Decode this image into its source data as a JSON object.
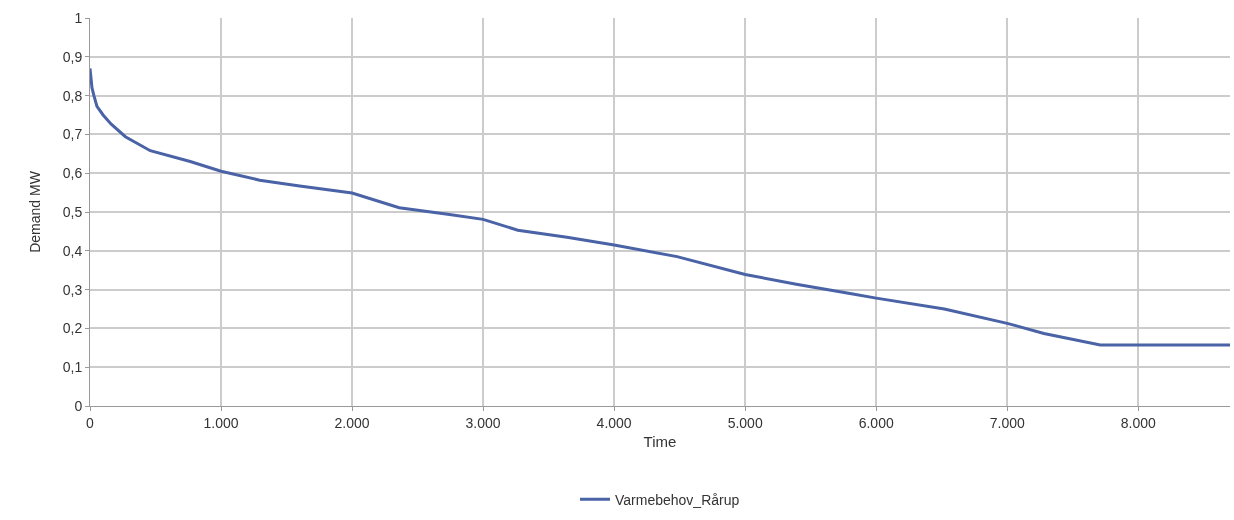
{
  "chart_data": {
    "type": "line",
    "xlabel": "Time",
    "ylabel": "Demand MW",
    "x": [
      0,
      15,
      30,
      53,
      100,
      160,
      270,
      460,
      765,
      1000,
      1295,
      1600,
      2000,
      2360,
      2730,
      3000,
      3265,
      3640,
      4000,
      4480,
      5000,
      5390,
      5800,
      6000,
      6520,
      7000,
      7280,
      7710,
      8700
    ],
    "series": [
      {
        "name": "Varmebehov_Rårup",
        "color": "#4a62a6",
        "values": [
          0.87,
          0.82,
          0.8,
          0.772,
          0.75,
          0.727,
          0.694,
          0.658,
          0.63,
          0.605,
          0.582,
          0.567,
          0.549,
          0.511,
          0.494,
          0.481,
          0.453,
          0.435,
          0.415,
          0.385,
          0.339,
          0.314,
          0.29,
          0.278,
          0.25,
          0.213,
          0.187,
          0.157,
          0.157
        ]
      }
    ],
    "xlim": [
      0,
      8700
    ],
    "ylim": [
      0,
      1
    ],
    "xticks": [
      0,
      {
        "value": 1000,
        "label": "1.000"
      },
      {
        "value": 2000,
        "label": "2.000"
      },
      {
        "value": 3000,
        "label": "3.000"
      },
      {
        "value": 4000,
        "label": "4.000"
      },
      {
        "value": 5000,
        "label": "5.000"
      },
      {
        "value": 6000,
        "label": "6.000"
      },
      {
        "value": 7000,
        "label": "7.000"
      },
      {
        "value": 8000,
        "label": "8.000"
      }
    ],
    "yticks": [
      0,
      {
        "value": 0.1,
        "label": "0,1"
      },
      {
        "value": 0.2,
        "label": "0,2"
      },
      {
        "value": 0.3,
        "label": "0,3"
      },
      {
        "value": 0.4,
        "label": "0,4"
      },
      {
        "value": 0.5,
        "label": "0,5"
      },
      {
        "value": 0.6,
        "label": "0,6"
      },
      {
        "value": 0.7,
        "label": "0,7"
      },
      {
        "value": 0.8,
        "label": "0,8"
      },
      {
        "value": 0.9,
        "label": "0,9"
      },
      1
    ],
    "grid": true,
    "legend": "bottom",
    "marker": "none",
    "line_style": "solid"
  }
}
